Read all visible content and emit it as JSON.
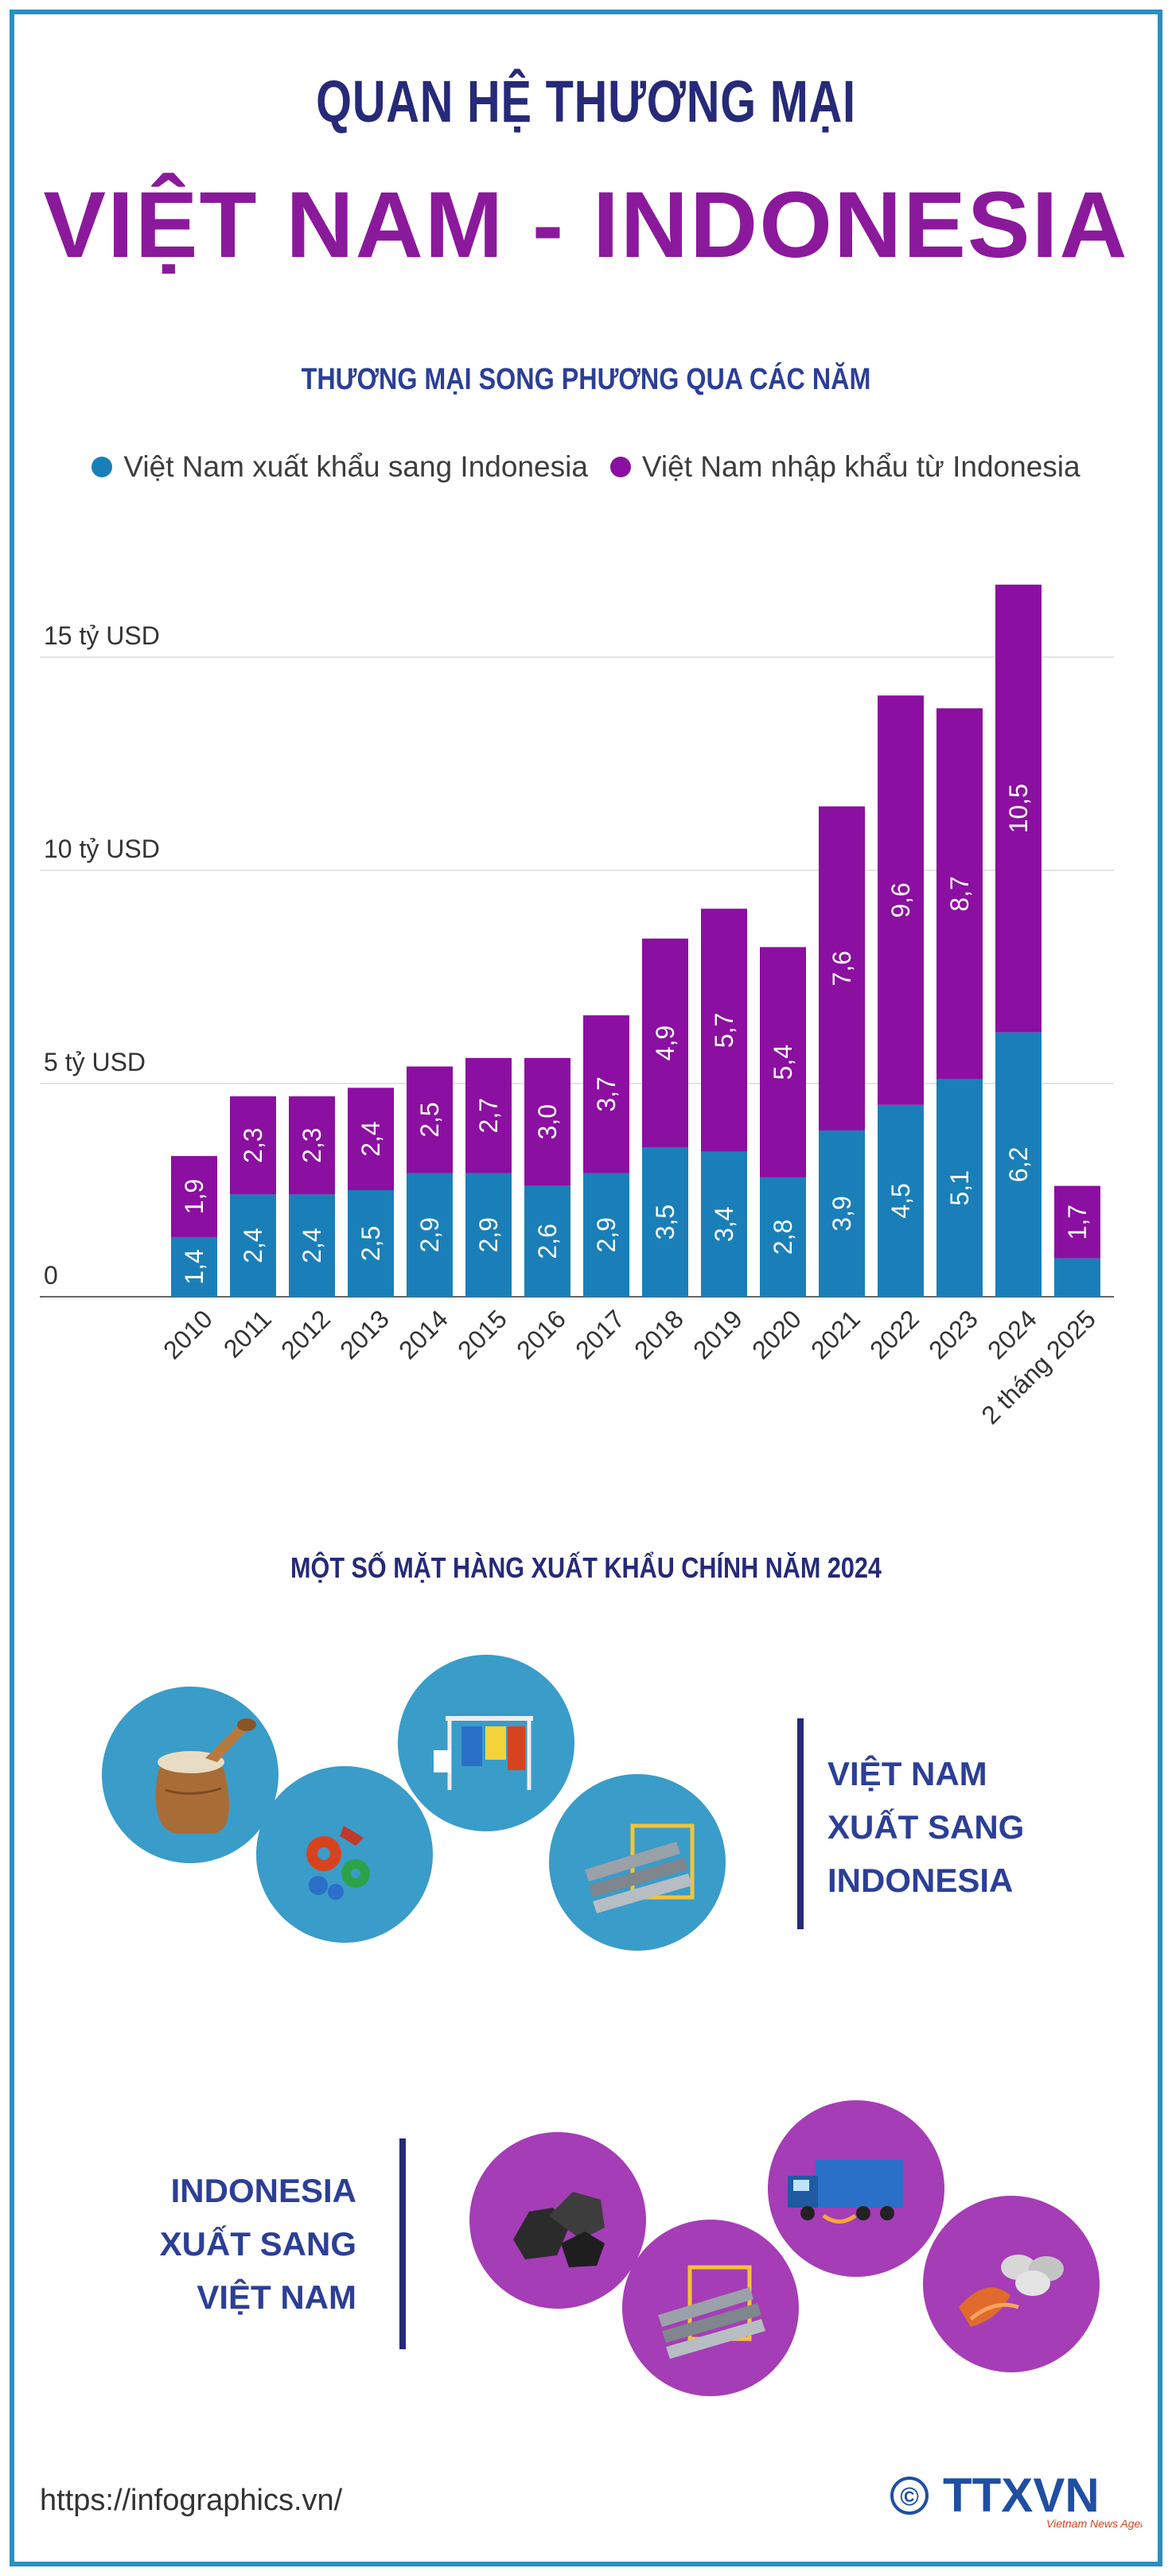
{
  "header": {
    "title_line1": "QUAN HỆ THƯƠNG MẠI",
    "title_line2": "VIỆT NAM - INDONESIA"
  },
  "chart_section": {
    "heading": "THƯƠNG MẠI SONG PHƯƠNG QUA CÁC NĂM"
  },
  "legend": {
    "export_label": "Việt Nam xuất khẩu sang Indonesia",
    "import_label": "Việt Nam nhập khẩu từ Indonesia"
  },
  "colors": {
    "export": "#1a7fb8",
    "import": "#8b0fa0",
    "title_dark": "#262a78",
    "title_purple": "#8a1a9b",
    "heading_blue": "#2c3f96",
    "frame": "#2a8fbd"
  },
  "chart_data": {
    "type": "bar",
    "stacked": true,
    "title": "THƯƠNG MẠI SONG PHƯƠNG QUA CÁC NĂM",
    "categories": [
      "2010",
      "2011",
      "2012",
      "2013",
      "2014",
      "2015",
      "2016",
      "2017",
      "2018",
      "2019",
      "2020",
      "2021",
      "2022",
      "2023",
      "2024",
      "2 tháng 2025"
    ],
    "series": [
      {
        "name": "Việt Nam xuất khẩu sang Indonesia",
        "values": [
          1.4,
          2.4,
          2.4,
          2.5,
          2.9,
          2.9,
          2.6,
          2.9,
          3.5,
          3.4,
          2.8,
          3.9,
          4.5,
          5.1,
          6.2,
          0.9
        ],
        "labels": [
          "1,4",
          "2,4",
          "2,4",
          "2,5",
          "2,9",
          "2,9",
          "2,6",
          "2,9",
          "3,5",
          "3,4",
          "2,8",
          "3,9",
          "4,5",
          "5,1",
          "6,2",
          ""
        ]
      },
      {
        "name": "Việt Nam nhập khẩu từ Indonesia",
        "values": [
          1.9,
          2.3,
          2.3,
          2.4,
          2.5,
          2.7,
          3.0,
          3.7,
          4.9,
          5.7,
          5.4,
          7.6,
          9.6,
          8.7,
          10.5,
          1.7
        ],
        "labels": [
          "1,9",
          "2,3",
          "2,3",
          "2,4",
          "2,5",
          "2,7",
          "3,0",
          "3,7",
          "4,9",
          "5,7",
          "5,4",
          "7,6",
          "9,6",
          "8,7",
          "10,5",
          "1,7"
        ]
      }
    ],
    "y_ticks": [
      0,
      5,
      10,
      15
    ],
    "y_tick_labels": [
      "0",
      "5 tỷ USD",
      "10 tỷ USD",
      "15 tỷ USD"
    ],
    "ylim": [
      0,
      17
    ],
    "legend_position": "top"
  },
  "products_section": {
    "heading": "MỘT SỐ MẶT HÀNG XUẤT KHẨU CHÍNH NĂM 2024",
    "vn_to_id": {
      "label_lines": [
        "VIỆT NAM",
        "XUẤT SANG",
        "INDONESIA"
      ],
      "items": [
        "rice-sack-icon",
        "machinery-gears-icon",
        "clothing-rack-icon",
        "steel-beams-icon"
      ]
    },
    "id_to_vn": {
      "label_lines": [
        "INDONESIA",
        "XUẤT SANG",
        "VIỆT NAM"
      ],
      "items": [
        "coal-icon",
        "steel-beams-icon",
        "truck-icon",
        "metal-coils-icon"
      ]
    }
  },
  "footer": {
    "url": "https://infographics.vn/",
    "copyright_symbol": "©",
    "logo_text": "TTXVN",
    "logo_subtext": "Vietnam News Agency"
  }
}
